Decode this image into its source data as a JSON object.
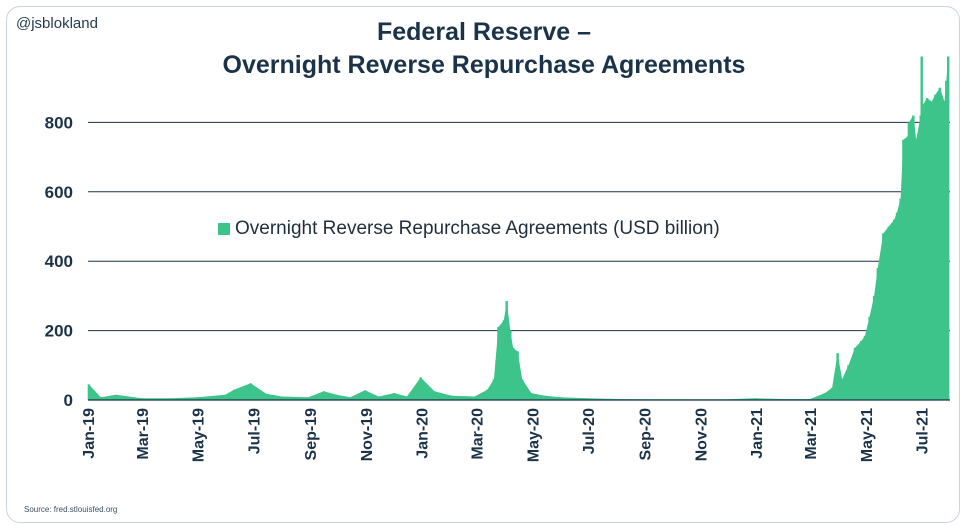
{
  "handle": "@jsblokland",
  "title_line1": "Federal Reserve –",
  "title_line2": "Overnight Reverse Repurchase Agreements",
  "source": "Source: fred.stlouisfed.org",
  "colors": {
    "series": "#3cc48a",
    "axis_text": "#1b3348",
    "grid": "#1b3348"
  },
  "chart_data": {
    "type": "bar",
    "title": "Federal Reserve – Overnight Reverse Repurchase Agreements",
    "xlabel": "",
    "ylabel": "",
    "ylim": [
      0,
      1000
    ],
    "yticks": [
      0,
      200,
      400,
      600,
      800
    ],
    "grid": true,
    "legend_position": "center",
    "x_tick_labels": [
      "Jan-19",
      "Mar-19",
      "May-19",
      "Jul-19",
      "Sep-19",
      "Nov-19",
      "Jan-20",
      "Mar-20",
      "May-20",
      "Jul-20",
      "Sep-20",
      "Nov-20",
      "Jan-21",
      "Mar-21",
      "May-21",
      "Jul-21"
    ],
    "series": [
      {
        "name": "Overnight Reverse Repurchase Agreements (USD billion)",
        "color": "#3cc48a",
        "x": [
          "2019-01-02",
          "2019-01-15",
          "2019-02-01",
          "2019-03-01",
          "2019-04-01",
          "2019-05-01",
          "2019-05-31",
          "2019-06-10",
          "2019-06-28",
          "2019-07-15",
          "2019-08-01",
          "2019-08-30",
          "2019-09-16",
          "2019-09-30",
          "2019-10-15",
          "2019-10-31",
          "2019-11-15",
          "2019-12-02",
          "2019-12-16",
          "2019-12-31",
          "2020-01-15",
          "2020-02-03",
          "2020-02-28",
          "2020-03-13",
          "2020-03-20",
          "2020-03-25",
          "2020-03-31",
          "2020-04-03",
          "2020-04-07",
          "2020-04-10",
          "2020-04-15",
          "2020-04-20",
          "2020-04-30",
          "2020-05-15",
          "2020-06-01",
          "2020-06-30",
          "2020-08-03",
          "2020-10-01",
          "2020-12-01",
          "2020-12-31",
          "2021-02-01",
          "2021-03-01",
          "2021-03-17",
          "2021-03-25",
          "2021-03-31",
          "2021-04-05",
          "2021-04-12",
          "2021-04-19",
          "2021-04-26",
          "2021-04-30",
          "2021-05-05",
          "2021-05-10",
          "2021-05-14",
          "2021-05-20",
          "2021-05-26",
          "2021-06-01",
          "2021-06-04",
          "2021-06-08",
          "2021-06-11",
          "2021-06-16",
          "2021-06-17",
          "2021-06-22",
          "2021-06-25",
          "2021-06-30",
          "2021-07-01",
          "2021-07-02",
          "2021-07-07",
          "2021-07-12",
          "2021-07-16",
          "2021-07-21",
          "2021-07-26",
          "2021-07-28",
          "2021-07-30"
        ],
        "values": [
          45,
          8,
          15,
          5,
          5,
          8,
          15,
          30,
          48,
          18,
          10,
          8,
          25,
          15,
          8,
          28,
          10,
          20,
          10,
          65,
          25,
          12,
          10,
          30,
          60,
          210,
          230,
          285,
          200,
          150,
          140,
          60,
          20,
          12,
          8,
          5,
          3,
          2,
          2,
          5,
          3,
          3,
          20,
          35,
          135,
          60,
          100,
          150,
          170,
          185,
          240,
          300,
          380,
          480,
          500,
          520,
          540,
          580,
          750,
          760,
          800,
          820,
          750,
          820,
          990,
          850,
          870,
          860,
          880,
          900,
          860,
          920,
          990
        ]
      }
    ]
  },
  "legend": {
    "label": "Overnight Reverse Repurchase Agreements (USD billion)"
  }
}
